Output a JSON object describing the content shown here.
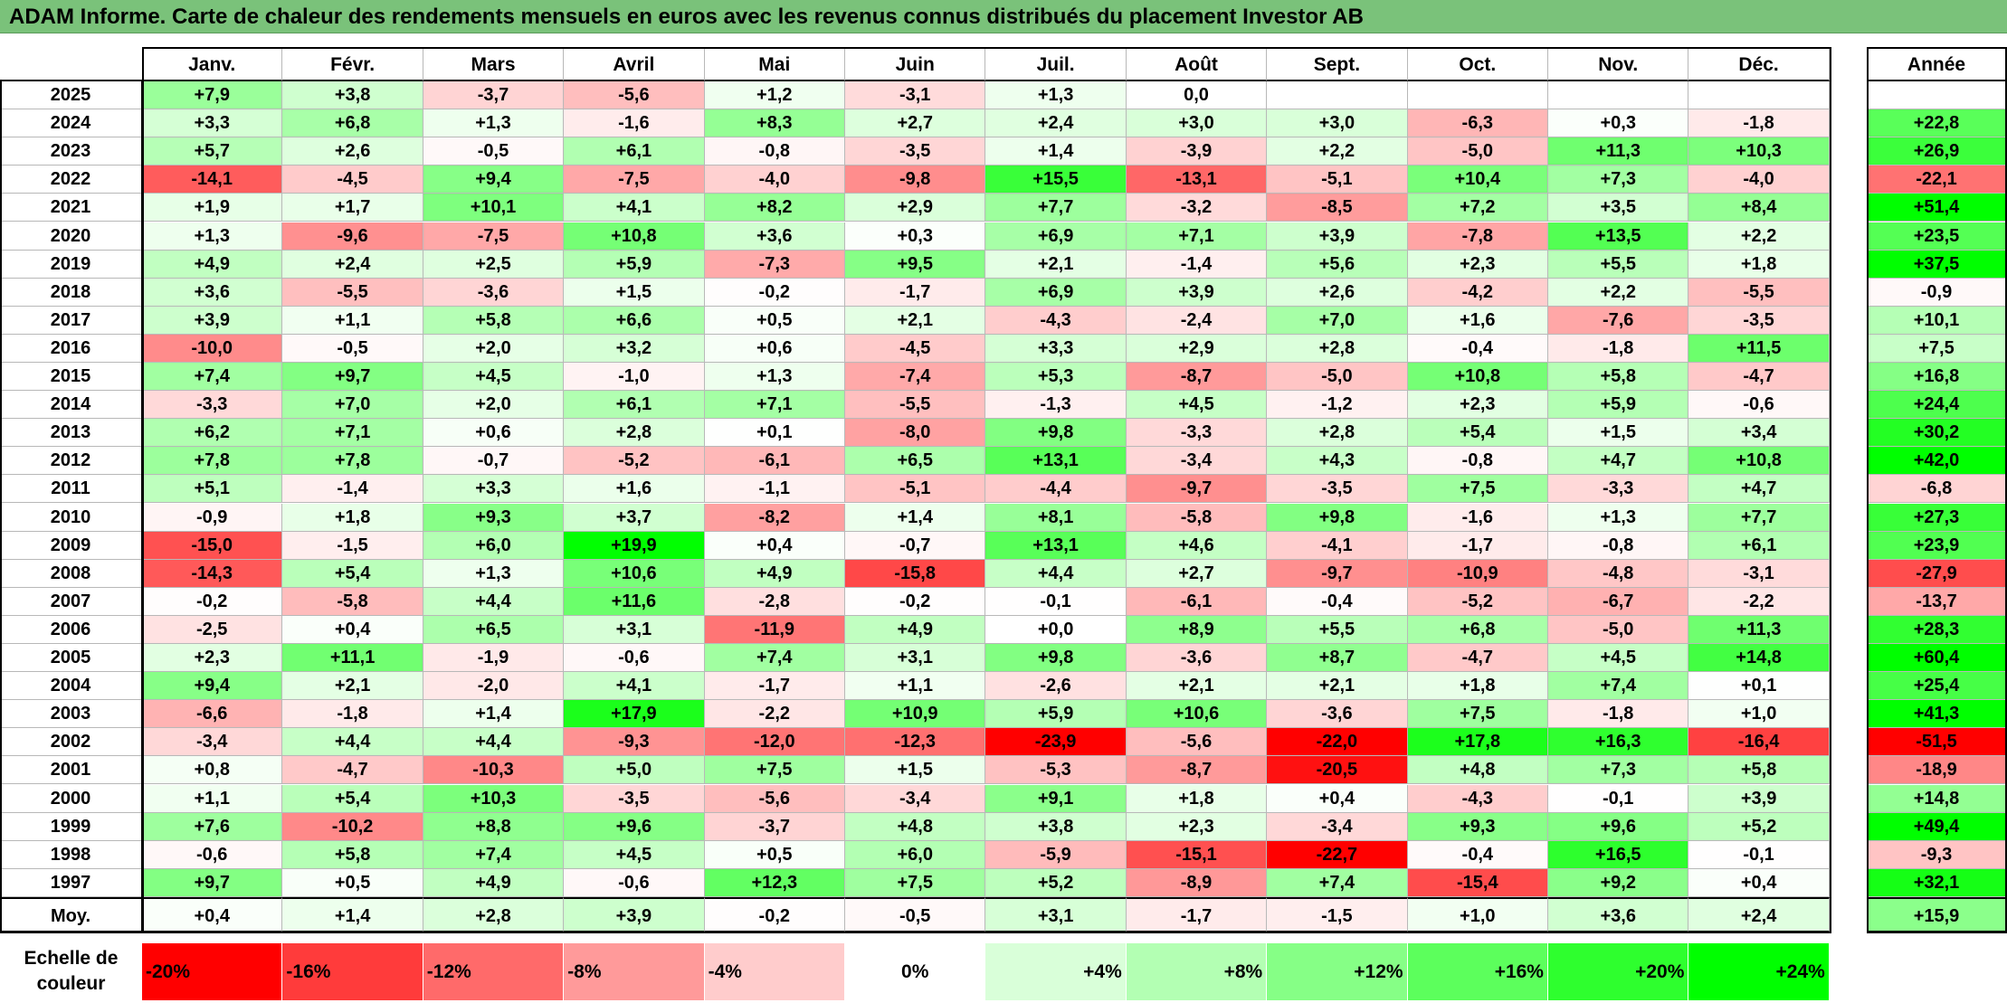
{
  "title": "ADAM Informe. Carte de chaleur des rendements mensuels en euros avec les revenus connus distribués du placement Investor AB",
  "chart_data": {
    "type": "heatmap",
    "months": [
      "Janv.",
      "Févr.",
      "Mars",
      "Avril",
      "Mai",
      "Juin",
      "Juil.",
      "Août",
      "Sept.",
      "Oct.",
      "Nov.",
      "Déc."
    ],
    "year_header": "Année",
    "avg_label": "Moy.",
    "rows": [
      {
        "year": "2025",
        "values": [
          "+7,9",
          "+3,8",
          "-3,7",
          "-5,6",
          "+1,2",
          "-3,1",
          "+1,3",
          "0,0",
          "",
          "",
          "",
          ""
        ],
        "annual": ""
      },
      {
        "year": "2024",
        "values": [
          "+3,3",
          "+6,8",
          "+1,3",
          "-1,6",
          "+8,3",
          "+2,7",
          "+2,4",
          "+3,0",
          "+3,0",
          "-6,3",
          "+0,3",
          "-1,8"
        ],
        "annual": "+22,8"
      },
      {
        "year": "2023",
        "values": [
          "+5,7",
          "+2,6",
          "-0,5",
          "+6,1",
          "-0,8",
          "-3,5",
          "+1,4",
          "-3,9",
          "+2,2",
          "-5,0",
          "+11,3",
          "+10,3"
        ],
        "annual": "+26,9"
      },
      {
        "year": "2022",
        "values": [
          "-14,1",
          "-4,5",
          "+9,4",
          "-7,5",
          "-4,0",
          "-9,8",
          "+15,5",
          "-13,1",
          "-5,1",
          "+10,4",
          "+7,3",
          "-4,0"
        ],
        "annual": "-22,1"
      },
      {
        "year": "2021",
        "values": [
          "+1,9",
          "+1,7",
          "+10,1",
          "+4,1",
          "+8,2",
          "+2,9",
          "+7,7",
          "-3,2",
          "-8,5",
          "+7,2",
          "+3,5",
          "+8,4"
        ],
        "annual": "+51,4"
      },
      {
        "year": "2020",
        "values": [
          "+1,3",
          "-9,6",
          "-7,5",
          "+10,8",
          "+3,6",
          "+0,3",
          "+6,9",
          "+7,1",
          "+3,9",
          "-7,8",
          "+13,5",
          "+2,2"
        ],
        "annual": "+23,5"
      },
      {
        "year": "2019",
        "values": [
          "+4,9",
          "+2,4",
          "+2,5",
          "+5,9",
          "-7,3",
          "+9,5",
          "+2,1",
          "-1,4",
          "+5,6",
          "+2,3",
          "+5,5",
          "+1,8"
        ],
        "annual": "+37,5"
      },
      {
        "year": "2018",
        "values": [
          "+3,6",
          "-5,5",
          "-3,6",
          "+1,5",
          "-0,2",
          "-1,7",
          "+6,9",
          "+3,9",
          "+2,6",
          "-4,2",
          "+2,2",
          "-5,5"
        ],
        "annual": "-0,9"
      },
      {
        "year": "2017",
        "values": [
          "+3,9",
          "+1,1",
          "+5,8",
          "+6,6",
          "+0,5",
          "+2,1",
          "-4,3",
          "-2,4",
          "+7,0",
          "+1,6",
          "-7,6",
          "-3,5"
        ],
        "annual": "+10,1"
      },
      {
        "year": "2016",
        "values": [
          "-10,0",
          "-0,5",
          "+2,0",
          "+3,2",
          "+0,6",
          "-4,5",
          "+3,3",
          "+2,9",
          "+2,8",
          "-0,4",
          "-1,8",
          "+11,5"
        ],
        "annual": "+7,5"
      },
      {
        "year": "2015",
        "values": [
          "+7,4",
          "+9,7",
          "+4,5",
          "-1,0",
          "+1,3",
          "-7,4",
          "+5,3",
          "-8,7",
          "-5,0",
          "+10,8",
          "+5,8",
          "-4,7"
        ],
        "annual": "+16,8"
      },
      {
        "year": "2014",
        "values": [
          "-3,3",
          "+7,0",
          "+2,0",
          "+6,1",
          "+7,1",
          "-5,5",
          "-1,3",
          "+4,5",
          "-1,2",
          "+2,3",
          "+5,9",
          "-0,6"
        ],
        "annual": "+24,4"
      },
      {
        "year": "2013",
        "values": [
          "+6,2",
          "+7,1",
          "+0,6",
          "+2,8",
          "+0,1",
          "-8,0",
          "+9,8",
          "-3,3",
          "+2,8",
          "+5,4",
          "+1,5",
          "+3,4"
        ],
        "annual": "+30,2"
      },
      {
        "year": "2012",
        "values": [
          "+7,8",
          "+7,8",
          "-0,7",
          "-5,2",
          "-6,1",
          "+6,5",
          "+13,1",
          "-3,4",
          "+4,3",
          "-0,8",
          "+4,7",
          "+10,8"
        ],
        "annual": "+42,0"
      },
      {
        "year": "2011",
        "values": [
          "+5,1",
          "-1,4",
          "+3,3",
          "+1,6",
          "-1,1",
          "-5,1",
          "-4,4",
          "-9,7",
          "-3,5",
          "+7,5",
          "-3,3",
          "+4,7"
        ],
        "annual": "-6,8"
      },
      {
        "year": "2010",
        "values": [
          "-0,9",
          "+1,8",
          "+9,3",
          "+3,7",
          "-8,2",
          "+1,4",
          "+8,1",
          "-5,8",
          "+9,8",
          "-1,6",
          "+1,3",
          "+7,7"
        ],
        "annual": "+27,3"
      },
      {
        "year": "2009",
        "values": [
          "-15,0",
          "-1,5",
          "+6,0",
          "+19,9",
          "+0,4",
          "-0,7",
          "+13,1",
          "+4,6",
          "-4,1",
          "-1,7",
          "-0,8",
          "+6,1"
        ],
        "annual": "+23,9"
      },
      {
        "year": "2008",
        "values": [
          "-14,3",
          "+5,4",
          "+1,3",
          "+10,6",
          "+4,9",
          "-15,8",
          "+4,4",
          "+2,7",
          "-9,7",
          "-10,9",
          "-4,8",
          "-3,1"
        ],
        "annual": "-27,9"
      },
      {
        "year": "2007",
        "values": [
          "-0,2",
          "-5,8",
          "+4,4",
          "+11,6",
          "-2,8",
          "-0,2",
          "-0,1",
          "-6,1",
          "-0,4",
          "-5,2",
          "-6,7",
          "-2,2"
        ],
        "annual": "-13,7"
      },
      {
        "year": "2006",
        "values": [
          "-2,5",
          "+0,4",
          "+6,5",
          "+3,1",
          "-11,9",
          "+4,9",
          "+0,0",
          "+8,9",
          "+5,5",
          "+6,8",
          "-5,0",
          "+11,3"
        ],
        "annual": "+28,3"
      },
      {
        "year": "2005",
        "values": [
          "+2,3",
          "+11,1",
          "-1,9",
          "-0,6",
          "+7,4",
          "+3,1",
          "+9,8",
          "-3,6",
          "+8,7",
          "-4,7",
          "+4,5",
          "+14,8"
        ],
        "annual": "+60,4"
      },
      {
        "year": "2004",
        "values": [
          "+9,4",
          "+2,1",
          "-2,0",
          "+4,1",
          "-1,7",
          "+1,1",
          "-2,6",
          "+2,1",
          "+2,1",
          "+1,8",
          "+7,4",
          "+0,1"
        ],
        "annual": "+25,4"
      },
      {
        "year": "2003",
        "values": [
          "-6,6",
          "-1,8",
          "+1,4",
          "+17,9",
          "-2,2",
          "+10,9",
          "+5,9",
          "+10,6",
          "-3,6",
          "+7,5",
          "-1,8",
          "+1,0"
        ],
        "annual": "+41,3"
      },
      {
        "year": "2002",
        "values": [
          "-3,4",
          "+4,4",
          "+4,4",
          "-9,3",
          "-12,0",
          "-12,3",
          "-23,9",
          "-5,6",
          "-22,0",
          "+17,8",
          "+16,3",
          "-16,4"
        ],
        "annual": "-51,5"
      },
      {
        "year": "2001",
        "values": [
          "+0,8",
          "-4,7",
          "-10,3",
          "+5,0",
          "+7,5",
          "+1,5",
          "-5,3",
          "-8,7",
          "-20,5",
          "+4,8",
          "+7,3",
          "+5,8"
        ],
        "annual": "-18,9"
      },
      {
        "year": "2000",
        "values": [
          "+1,1",
          "+5,4",
          "+10,3",
          "-3,5",
          "-5,6",
          "-3,4",
          "+9,1",
          "+1,8",
          "+0,4",
          "-4,3",
          "-0,1",
          "+3,9"
        ],
        "annual": "+14,8"
      },
      {
        "year": "1999",
        "values": [
          "+7,6",
          "-10,2",
          "+8,8",
          "+9,6",
          "-3,7",
          "+4,8",
          "+3,8",
          "+2,3",
          "-3,4",
          "+9,3",
          "+9,6",
          "+5,2"
        ],
        "annual": "+49,4"
      },
      {
        "year": "1998",
        "values": [
          "-0,6",
          "+5,8",
          "+7,4",
          "+4,5",
          "+0,5",
          "+6,0",
          "-5,9",
          "-15,1",
          "-22,7",
          "-0,4",
          "+16,5",
          "-0,1"
        ],
        "annual": "-9,3"
      },
      {
        "year": "1997",
        "values": [
          "+9,7",
          "+0,5",
          "+4,9",
          "-0,6",
          "+12,3",
          "+7,5",
          "+5,2",
          "-8,9",
          "+7,4",
          "-15,4",
          "+9,2",
          "+0,4"
        ],
        "annual": "+32,1"
      }
    ],
    "averages": [
      "+0,4",
      "+1,4",
      "+2,8",
      "+3,9",
      "-0,2",
      "-0,5",
      "+3,1",
      "-1,7",
      "-1,5",
      "+1,0",
      "+3,6",
      "+2,4"
    ],
    "average_annual": "+15,9",
    "color_scale": {
      "label": "Echelle de couleur",
      "stops": [
        "-20%",
        "-16%",
        "-12%",
        "-8%",
        "-4%",
        "0%",
        "+4%",
        "+8%",
        "+12%",
        "+16%",
        "+20%",
        "+24%"
      ],
      "stop_colors": [
        "#ff0000",
        "#ff3b3b",
        "#ff6a6a",
        "#ff9a9a",
        "#ffcccc",
        "#ffffff",
        "#d9ffd9",
        "#b3ffb3",
        "#86ff86",
        "#5cff5c",
        "#2eff2e",
        "#00ff00"
      ]
    }
  }
}
